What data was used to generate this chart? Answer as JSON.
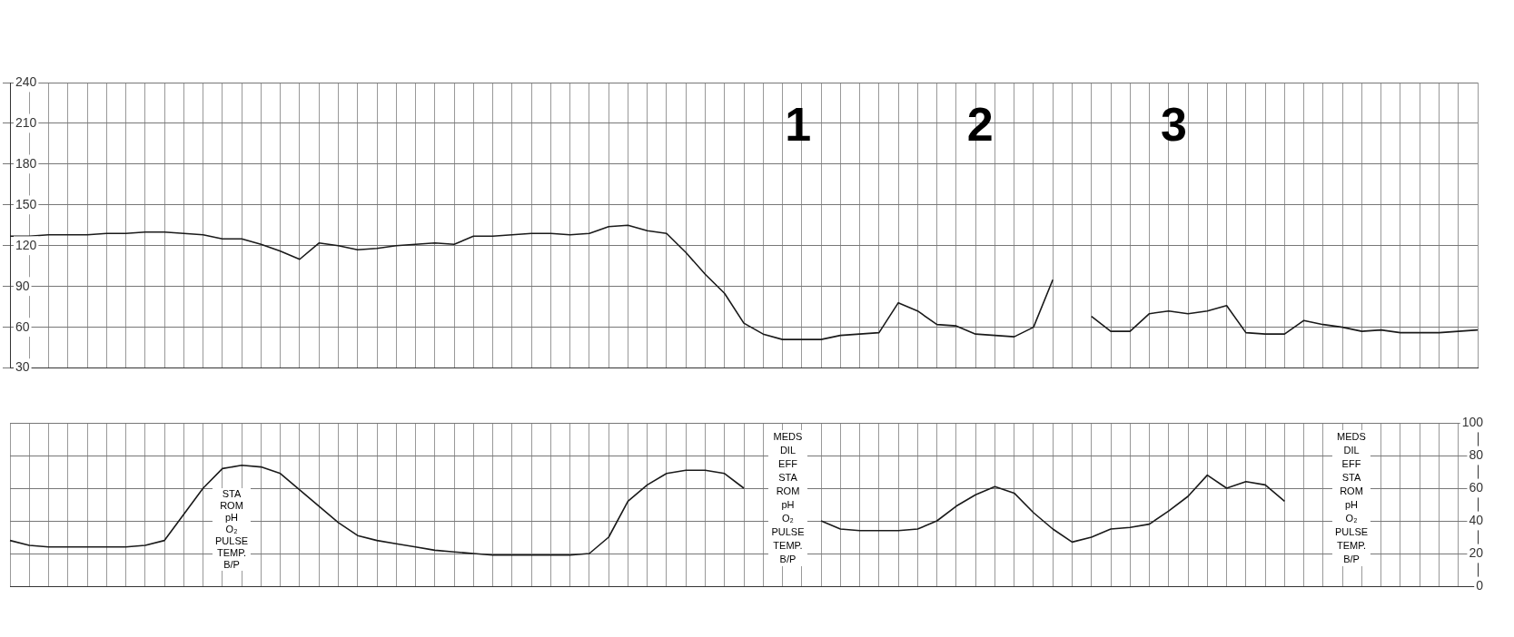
{
  "chart_data": [
    {
      "type": "line",
      "categories": [
        null,
        null,
        null,
        null,
        null,
        null,
        null,
        null,
        null,
        null,
        null,
        null,
        null,
        null,
        null,
        null,
        null,
        null,
        null,
        null,
        null,
        null,
        null,
        null,
        null,
        null,
        null,
        null,
        null,
        null,
        null,
        null,
        null,
        null,
        null,
        null,
        null,
        null,
        null,
        null,
        null,
        null,
        null,
        null,
        null,
        null,
        null,
        null,
        null,
        null,
        null,
        null,
        null,
        null,
        null,
        null,
        null,
        null,
        null,
        null,
        null,
        null,
        null,
        null,
        null,
        null,
        null,
        null,
        null,
        null,
        null,
        null,
        null,
        null,
        null,
        null,
        null
      ],
      "series": [
        {
          "color": "#1a1a1a",
          "values": [
            127,
            127,
            128,
            128,
            128,
            129,
            129,
            130,
            130,
            129,
            128,
            125,
            125,
            121,
            116,
            110,
            122,
            120,
            117,
            118,
            120,
            121,
            122,
            121,
            127,
            127,
            128,
            129,
            129,
            128,
            129,
            134,
            135,
            131,
            129,
            115,
            99,
            85,
            63,
            55,
            51,
            51,
            51,
            54,
            55,
            56,
            78,
            72,
            62,
            61,
            55,
            54,
            53,
            60,
            95,
            null,
            null,
            null,
            null,
            null,
            null,
            null,
            null,
            null,
            null,
            null,
            null,
            null,
            null,
            null,
            null,
            null,
            null,
            null,
            null,
            null,
            null
          ]
        },
        {
          "color": "#1a1a1a",
          "values": [
            null,
            null,
            null,
            null,
            null,
            null,
            null,
            null,
            null,
            null,
            null,
            null,
            null,
            null,
            null,
            null,
            null,
            null,
            null,
            null,
            null,
            null,
            null,
            null,
            null,
            null,
            null,
            null,
            null,
            null,
            null,
            null,
            null,
            null,
            null,
            null,
            null,
            null,
            null,
            null,
            null,
            null,
            null,
            null,
            null,
            null,
            null,
            null,
            null,
            null,
            null,
            null,
            null,
            null,
            null,
            null,
            68,
            57,
            57,
            70,
            72,
            70,
            72,
            76,
            56,
            55,
            55,
            65,
            62,
            60,
            57,
            58,
            56,
            56,
            56,
            57,
            58
          ]
        }
      ],
      "ylim": [
        30,
        240
      ],
      "yticks": [
        30,
        60,
        90,
        120,
        150,
        180,
        210,
        240
      ],
      "grid": true,
      "legend": false,
      "marker": "none",
      "line_style": "solid",
      "annotations": [
        "1",
        "2",
        "3"
      ]
    },
    {
      "type": "line",
      "categories": [
        null,
        null,
        null,
        null,
        null,
        null,
        null,
        null,
        null,
        null,
        null,
        null,
        null,
        null,
        null,
        null,
        null,
        null,
        null,
        null,
        null,
        null,
        null,
        null,
        null,
        null,
        null,
        null,
        null,
        null,
        null,
        null,
        null,
        null,
        null,
        null,
        null,
        null,
        null,
        null,
        null,
        null,
        null,
        null,
        null,
        null,
        null,
        null,
        null,
        null,
        null,
        null,
        null,
        null,
        null,
        null,
        null,
        null,
        null,
        null,
        null,
        null,
        null,
        null,
        null,
        null,
        null,
        null,
        null,
        null,
        null,
        null,
        null,
        null,
        null,
        null,
        null
      ],
      "series": [
        {
          "color": "#1a1a1a",
          "values": [
            28,
            25,
            24,
            24,
            24,
            24,
            24,
            25,
            28,
            44,
            60,
            72,
            74,
            73,
            69,
            59,
            49,
            39,
            31,
            28,
            26,
            24,
            22,
            21,
            20,
            19,
            19,
            19,
            19,
            19,
            20,
            30,
            52,
            62,
            69,
            71,
            71,
            69,
            60,
            null,
            null,
            null,
            null,
            null,
            null,
            null,
            null,
            null,
            null,
            null,
            null,
            null,
            null,
            null,
            null,
            null,
            null,
            null,
            null,
            null,
            null,
            null,
            null,
            null,
            null,
            null,
            null,
            null,
            null,
            null,
            null,
            null,
            null,
            null,
            null,
            null,
            null
          ]
        },
        {
          "color": "#1a1a1a",
          "values": [
            null,
            null,
            null,
            null,
            null,
            null,
            null,
            null,
            null,
            null,
            null,
            null,
            null,
            null,
            null,
            null,
            null,
            null,
            null,
            null,
            null,
            null,
            null,
            null,
            null,
            null,
            null,
            null,
            null,
            null,
            null,
            null,
            null,
            null,
            null,
            null,
            null,
            null,
            null,
            null,
            null,
            null,
            40,
            35,
            34,
            34,
            34,
            35,
            40,
            49,
            56,
            61,
            57,
            45,
            35,
            27,
            30,
            35,
            36,
            38,
            46,
            55,
            68,
            60,
            64,
            62,
            52,
            null,
            null,
            null,
            null,
            null,
            null,
            null,
            null,
            null,
            null
          ]
        }
      ],
      "ylim": [
        0,
        100
      ],
      "yticks": [
        0,
        20,
        40,
        60,
        80,
        100
      ],
      "grid": true,
      "legend": false,
      "marker": "none",
      "line_style": "solid",
      "annotations": [
        "STA\nROM\npH\nO₂\nPULSE\nTEMP.\nB/P",
        "MEDS\nDIL\nEFF\nSTA\nROM\npH\nO₂\nPULSE\nTEMP.\nB/P",
        "MEDS\nDIL\nEFF\nSTA\nROM\npH\nO₂\nPULSE\nTEMP.\nB/P"
      ]
    }
  ]
}
